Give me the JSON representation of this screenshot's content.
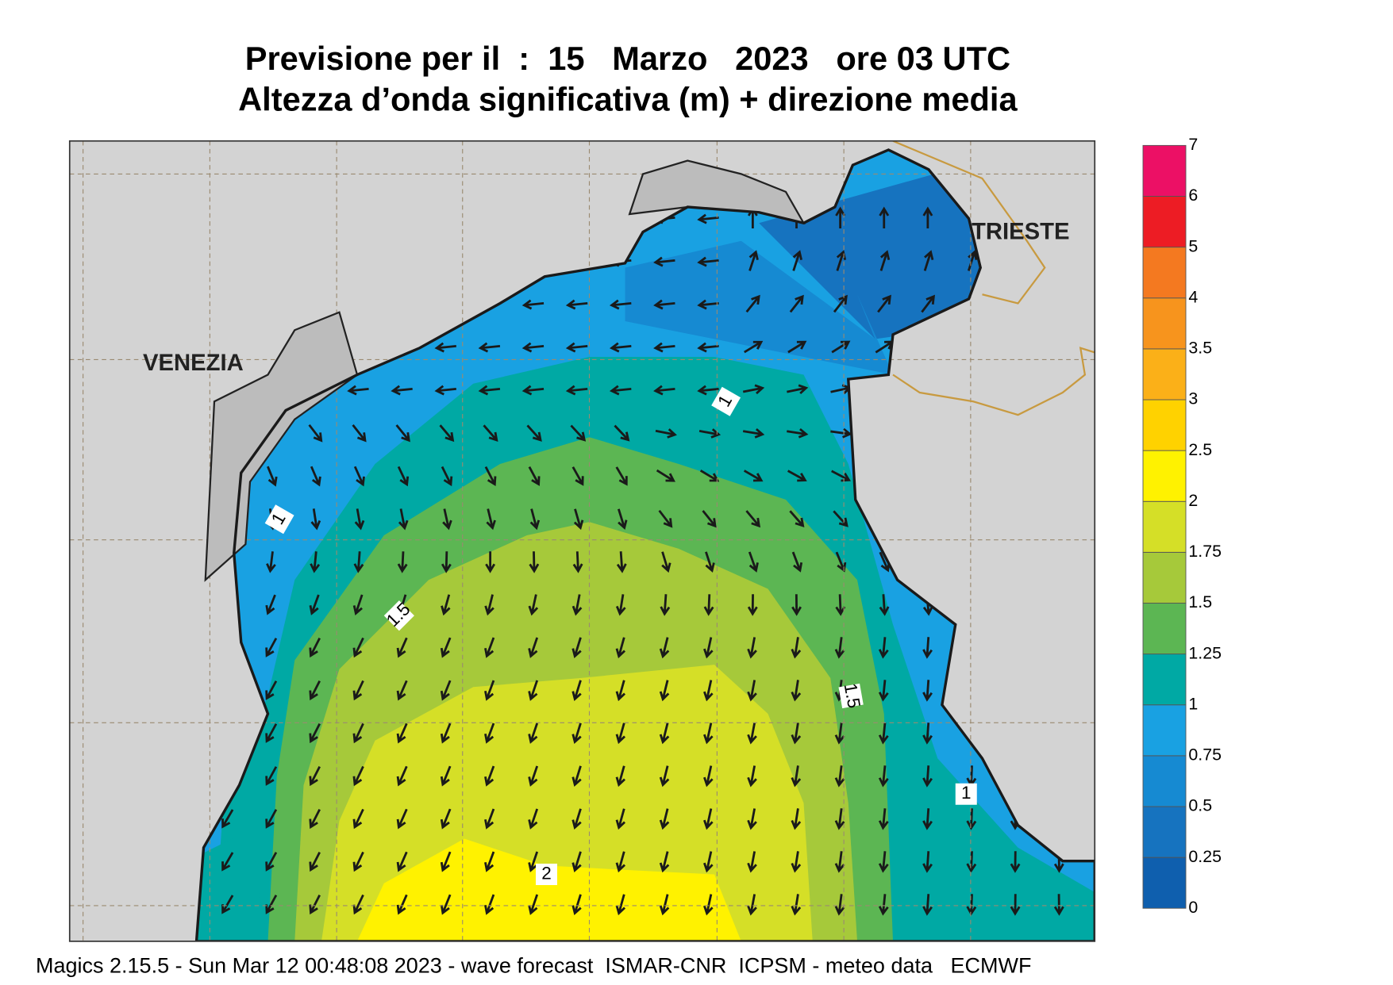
{
  "header": {
    "title": "Previsione per il  :  15   Marzo   2023   ore 03 UTC",
    "subtitle": "Altezza d’onda significativa (m) + direzione media"
  },
  "map": {
    "places": [
      "VENEZIA",
      "TRIESTE"
    ],
    "contour_labels": [
      "1",
      "1",
      "1.5",
      "1.5",
      "1",
      "2"
    ]
  },
  "legend": {
    "levels": [
      0,
      0.25,
      0.5,
      0.75,
      1,
      1.25,
      1.5,
      1.75,
      2,
      2.5,
      3,
      3.5,
      4,
      5,
      6,
      7
    ],
    "colors": [
      "#0f5fae",
      "#1673bf",
      "#168ad2",
      "#19a1e2",
      "#00a9a4",
      "#5cb653",
      "#a6c93a",
      "#d5df27",
      "#fff200",
      "#ffd200",
      "#fbb018",
      "#f7941d",
      "#f47920",
      "#ed1c24",
      "#ec1065"
    ]
  },
  "footer": "Magics 2.15.5 - Sun Mar 12 00:48:08 2023 - wave forecast  ISMAR-CNR  ICPSM - meteo data   ECMWF"
}
